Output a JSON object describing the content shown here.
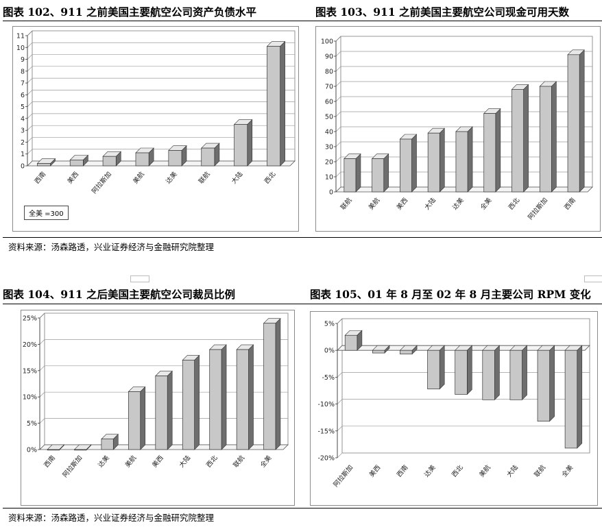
{
  "source_text": "资料来源：汤森路透，兴业证券经济与金融研究院整理",
  "colors": {
    "bar_front": "#c8c8c8",
    "bar_side": "#6e6e6e",
    "bar_top": "#e8e8e8",
    "grid": "#9a9a9a"
  },
  "chart_data": [
    {
      "type": "bar",
      "title": "图表 102、911 之前美国主要航空公司资产负债水平",
      "categories": [
        "西南",
        "美西",
        "阿拉斯加",
        "美航",
        "达美",
        "联航",
        "大陆",
        "西北"
      ],
      "values": [
        0.2,
        0.5,
        0.8,
        1.1,
        1.3,
        1.5,
        3.5,
        10.1
      ],
      "ylim": [
        0,
        11
      ],
      "yticks": [
        0,
        1,
        2,
        3,
        4,
        5,
        6,
        7,
        8,
        9,
        10,
        11
      ],
      "ytick_labels": [
        "0",
        "1",
        "2",
        "3",
        "4",
        "5",
        "6",
        "7",
        "8",
        "9",
        "10",
        "11"
      ],
      "note": "全美 =300",
      "grid": true,
      "xlabel": "",
      "ylabel": ""
    },
    {
      "type": "bar",
      "title": "图表 103、911 之前美国主要航空公司现金可用天数",
      "categories": [
        "联航",
        "美航",
        "美西",
        "大陆",
        "达美",
        "全美",
        "西北",
        "阿拉斯加",
        "西南"
      ],
      "values": [
        22,
        22,
        35,
        39,
        40,
        52,
        68,
        70,
        91
      ],
      "ylim": [
        0,
        100
      ],
      "yticks": [
        0,
        10,
        20,
        30,
        40,
        50,
        60,
        70,
        80,
        90,
        100
      ],
      "ytick_labels": [
        "0",
        "10",
        "20",
        "30",
        "40",
        "50",
        "60",
        "70",
        "80",
        "90",
        "100"
      ],
      "grid": true,
      "xlabel": "",
      "ylabel": ""
    },
    {
      "type": "bar",
      "title": "图表 104、911 之后美国主要航空公司裁员比例",
      "categories": [
        "西南",
        "阿拉斯加",
        "达美",
        "美航",
        "美西",
        "大陆",
        "西北",
        "联航",
        "全美"
      ],
      "values": [
        0,
        0,
        2,
        11,
        14,
        17,
        19,
        19,
        24
      ],
      "ylim": [
        0,
        25
      ],
      "yticks": [
        0,
        5,
        10,
        15,
        20,
        25
      ],
      "ytick_labels": [
        "0%",
        "5%",
        "10%",
        "15%",
        "20%",
        "25%"
      ],
      "grid": true,
      "xlabel": "",
      "ylabel": ""
    },
    {
      "type": "bar",
      "title": "图表 105、01 年 8 月至 02 年 8 月主要公司 RPM 变化",
      "categories": [
        "阿拉斯加",
        "美西",
        "西南",
        "达美",
        "西北",
        "美航",
        "大陆",
        "联航",
        "全美"
      ],
      "values": [
        2.8,
        -0.5,
        -0.7,
        -7.2,
        -8.2,
        -9.2,
        -9.2,
        -13.2,
        -18.2
      ],
      "ylim": [
        -20,
        5
      ],
      "yticks": [
        -20,
        -15,
        -10,
        -5,
        0,
        5
      ],
      "ytick_labels": [
        "-20%",
        "-15%",
        "-10%",
        "-5%",
        "0%",
        "5%"
      ],
      "grid": true,
      "xlabel": "",
      "ylabel": ""
    }
  ]
}
